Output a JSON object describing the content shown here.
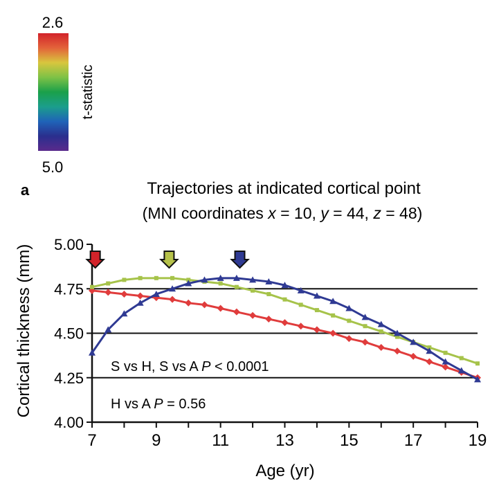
{
  "colorbar": {
    "top_label": "2.6",
    "bottom_label": "5.0",
    "title": "t-statistic",
    "colors": [
      "#d2232a",
      "#e3633a",
      "#d8c63e",
      "#7ec246",
      "#1aa04a",
      "#1b9e8c",
      "#1f63b8",
      "#2a2f8e",
      "#5a2a8c"
    ]
  },
  "panel_label": "a",
  "chart_data": {
    "type": "line",
    "title": "Trajectories at indicated cortical point",
    "subtitle_parts": [
      "(MNI coordinates ",
      "x",
      " = 10, ",
      "y",
      " = 44, ",
      "z",
      " = 48)"
    ],
    "xlabel": "Age (yr)",
    "ylabel": "Cortical thickness (mm)",
    "xlim": [
      7,
      19
    ],
    "ylim": [
      4.0,
      5.0
    ],
    "xticks": [
      "7",
      "9",
      "11",
      "13",
      "15",
      "17",
      "19"
    ],
    "xtick_values": [
      7,
      9,
      11,
      13,
      15,
      17,
      19
    ],
    "yticks": [
      "4.00",
      "4.25",
      "4.50",
      "4.75",
      "5.00"
    ],
    "ytick_values": [
      4.0,
      4.25,
      4.5,
      4.75,
      5.0
    ],
    "grid_y": [
      4.25,
      4.5,
      4.75
    ],
    "series": [
      {
        "color": "#e03c3c",
        "marker": "diamond",
        "x": [
          7.0,
          7.5,
          8.0,
          8.5,
          9.0,
          9.5,
          10.0,
          10.5,
          11.0,
          11.5,
          12.0,
          12.5,
          13.0,
          13.5,
          14.0,
          14.5,
          15.0,
          15.5,
          16.0,
          16.5,
          17.0,
          17.5,
          18.0,
          18.5,
          19.0
        ],
        "y": [
          4.74,
          4.73,
          4.72,
          4.71,
          4.7,
          4.69,
          4.67,
          4.66,
          4.64,
          4.62,
          4.6,
          4.58,
          4.56,
          4.54,
          4.52,
          4.5,
          4.47,
          4.45,
          4.42,
          4.4,
          4.37,
          4.34,
          4.31,
          4.28,
          4.25
        ]
      },
      {
        "color": "#a6c34a",
        "marker": "square",
        "x": [
          7.0,
          7.5,
          8.0,
          8.5,
          9.0,
          9.5,
          10.0,
          10.5,
          11.0,
          11.5,
          12.0,
          12.5,
          13.0,
          13.5,
          14.0,
          14.5,
          15.0,
          15.5,
          16.0,
          16.5,
          17.0,
          17.5,
          18.0,
          18.5,
          19.0
        ],
        "y": [
          4.76,
          4.78,
          4.8,
          4.81,
          4.81,
          4.81,
          4.8,
          4.79,
          4.78,
          4.76,
          4.74,
          4.72,
          4.69,
          4.66,
          4.63,
          4.6,
          4.57,
          4.54,
          4.51,
          4.48,
          4.45,
          4.42,
          4.39,
          4.36,
          4.33
        ]
      },
      {
        "color": "#2f3a93",
        "marker": "triangle",
        "x": [
          7.0,
          7.5,
          8.0,
          8.5,
          9.0,
          9.5,
          10.0,
          10.5,
          11.0,
          11.5,
          12.0,
          12.5,
          13.0,
          13.5,
          14.0,
          14.5,
          15.0,
          15.5,
          16.0,
          16.5,
          17.0,
          17.5,
          18.0,
          18.5,
          19.0
        ],
        "y": [
          4.39,
          4.52,
          4.61,
          4.67,
          4.72,
          4.75,
          4.78,
          4.8,
          4.81,
          4.81,
          4.8,
          4.79,
          4.77,
          4.74,
          4.71,
          4.68,
          4.64,
          4.59,
          4.55,
          4.5,
          4.45,
          4.4,
          4.34,
          4.29,
          4.24
        ]
      }
    ],
    "peak_markers": [
      {
        "x": 7.1,
        "color": "#d2232a"
      },
      {
        "x": 9.4,
        "color": "#b6c24a"
      },
      {
        "x": 11.6,
        "color": "#2f3a93"
      }
    ],
    "annotations": [
      {
        "parts": [
          "S vs H, S vs A ",
          "P",
          " < 0.0001"
        ]
      },
      {
        "parts": [
          "H vs A ",
          "P",
          " = 0.56"
        ]
      }
    ]
  }
}
